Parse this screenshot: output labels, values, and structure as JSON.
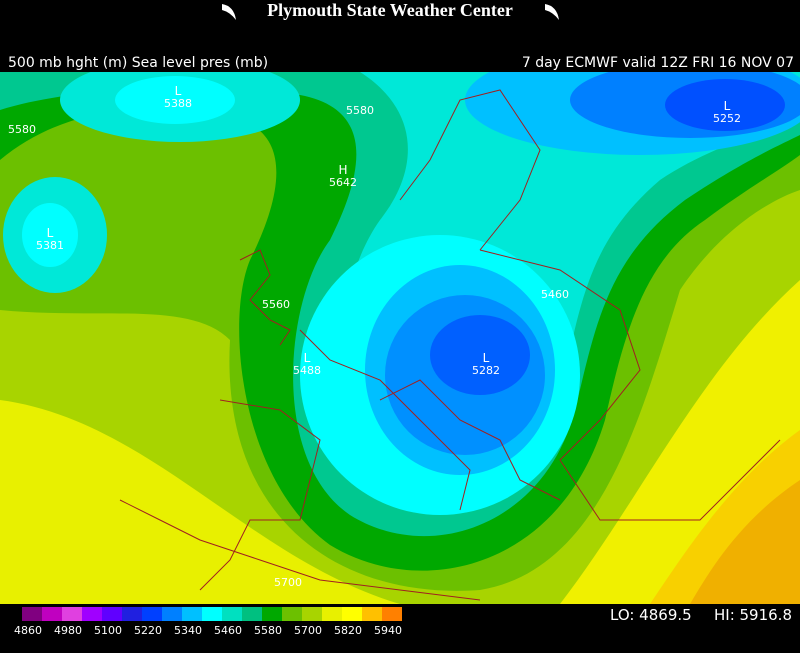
{
  "header": {
    "title": "Plymouth State Weather Center"
  },
  "subtitle": {
    "left": "500 mb hght (m) Sea level pres (mb)",
    "right": "7 day ECMWF valid 12Z FRI 16 NOV 07"
  },
  "map": {
    "centers": [
      {
        "letter": "L",
        "value": "5388"
      },
      {
        "letter": "L",
        "value": "5381"
      },
      {
        "letter": "H",
        "value": "5642"
      },
      {
        "letter": "L",
        "value": "5488"
      },
      {
        "letter": "L",
        "value": "5282"
      },
      {
        "letter": "L",
        "value": "5252"
      }
    ],
    "contour_labels": [
      "5580",
      "5580",
      "5560",
      "5460",
      "5700"
    ]
  },
  "colorbar": {
    "labels": [
      "4860",
      "4980",
      "5100",
      "5220",
      "5340",
      "5460",
      "5580",
      "5700",
      "5820",
      "5940"
    ]
  },
  "stats": {
    "low": "LO: 4869.5",
    "high": "HI: 5916.8"
  }
}
